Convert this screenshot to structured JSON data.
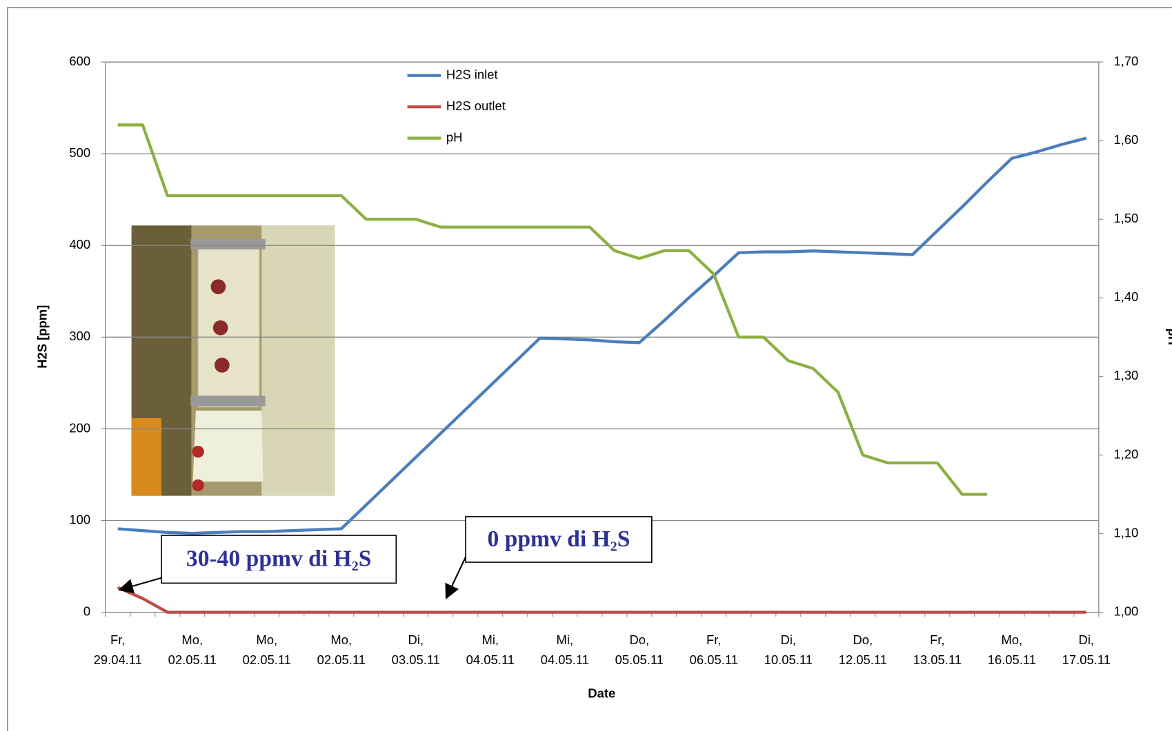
{
  "chart_data": {
    "type": "line",
    "categories": [
      "Fr,\n29.04.11",
      null,
      null,
      "Mo,\n02.05.11",
      null,
      null,
      "Mo,\n02.05.11",
      null,
      null,
      "Mo,\n02.05.11",
      null,
      null,
      "Di,\n03.05.11",
      null,
      null,
      "Mi,\n04.05.11",
      null,
      null,
      "Mi,\n04.05.11",
      null,
      null,
      "Do,\n05.05.11",
      null,
      null,
      "Fr,\n06.05.11",
      null,
      null,
      "Di,\n10.05.11",
      null,
      null,
      "Do,\n12.05.11",
      null,
      null,
      "Fr,\n13.05.11",
      null,
      null,
      "Mo,\n16.05.11",
      null,
      null,
      "Di,\n17.05.11"
    ],
    "series": [
      {
        "name": "H2S inlet",
        "color": "#4a7ebb",
        "values": [
          91,
          89,
          87,
          86,
          87,
          88,
          88,
          89,
          90,
          91,
          117,
          143,
          169,
          195,
          221,
          247,
          273,
          299,
          298,
          297,
          295,
          294,
          318,
          343,
          367,
          392,
          393,
          393,
          394,
          393,
          392,
          391,
          390,
          416,
          442,
          469,
          495,
          502,
          510,
          517
        ]
      },
      {
        "name": "H2S outlet",
        "color": "#be4b48",
        "values": [
          27,
          15,
          0,
          0,
          0,
          0,
          0,
          0,
          0,
          0,
          0,
          0,
          0,
          0,
          0,
          0,
          0,
          0,
          0,
          0,
          0,
          0,
          0,
          0,
          0,
          0,
          0,
          0,
          0,
          0,
          0,
          0,
          0,
          0,
          0,
          0,
          0,
          0,
          0,
          0
        ]
      },
      {
        "name": "pH",
        "color": "#8cb043",
        "axis": "y2",
        "values": [
          1.62,
          1.62,
          1.53,
          1.53,
          1.53,
          1.53,
          1.53,
          1.53,
          1.53,
          1.53,
          1.5,
          1.5,
          1.5,
          1.49,
          1.49,
          1.49,
          1.49,
          1.49,
          1.49,
          1.49,
          1.46,
          1.45,
          1.46,
          1.46,
          1.43,
          1.35,
          1.35,
          1.32,
          1.31,
          1.28,
          1.2,
          1.19,
          1.19,
          1.19,
          1.15,
          1.15,
          null,
          null,
          null,
          null
        ]
      }
    ],
    "ylabel": "H2S [ppm]",
    "y2label": "pH",
    "xlabel": "Date",
    "ylim": [
      0,
      600
    ],
    "yticks": [
      0,
      100,
      200,
      300,
      400,
      500,
      600
    ],
    "y2lim": [
      1.0,
      1.7
    ],
    "y2ticks": [
      {
        "value": 1.0,
        "label": "1,00"
      },
      {
        "value": 1.1,
        "label": "1,10"
      },
      {
        "value": 1.2,
        "label": "1,20"
      },
      {
        "value": 1.3,
        "label": "1,30"
      },
      {
        "value": 1.4,
        "label": "1,40"
      },
      {
        "value": 1.5,
        "label": "1,50"
      },
      {
        "value": 1.6,
        "label": "1,60"
      },
      {
        "value": 1.7,
        "label": "1,70"
      }
    ],
    "grid": true,
    "legend": "top",
    "annotations": [
      "30-40 ppmv di H₂S",
      "0 ppmv di H₂S"
    ]
  }
}
